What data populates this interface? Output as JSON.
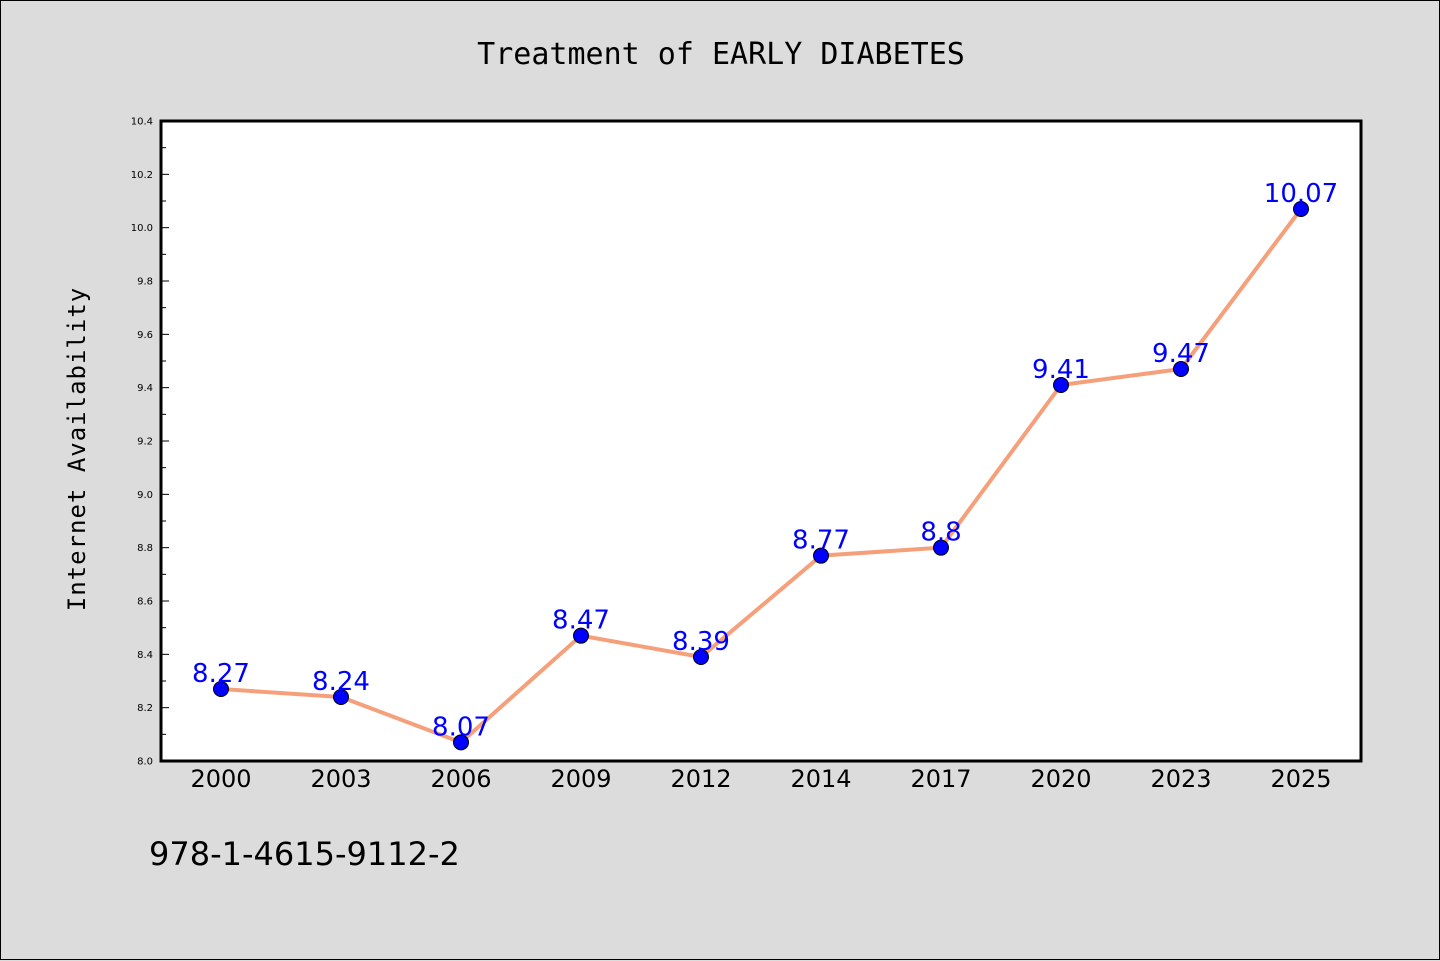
{
  "chart_data": {
    "type": "line",
    "title": "Treatment of EARLY DIABETES",
    "xlabel": "",
    "ylabel": "Internet Availability",
    "categories": [
      "2000",
      "2003",
      "2006",
      "2009",
      "2012",
      "2014",
      "2017",
      "2020",
      "2023",
      "2025"
    ],
    "series": [
      {
        "values": [
          8.27,
          8.24,
          8.07,
          8.47,
          8.39,
          8.77,
          8.8,
          9.41,
          9.47,
          10.07
        ],
        "data_labels": [
          "8.27",
          "8.24",
          "8.07",
          "8.47",
          "8.39",
          "8.77",
          "8.8",
          "9.41",
          "9.47",
          "10.07"
        ],
        "line_color": "#f5a07a",
        "marker_color": "#0000ff"
      }
    ],
    "ylim": [
      8.0,
      10.4
    ],
    "yticks": [
      "8.0",
      "8.2",
      "8.4",
      "8.6",
      "8.8",
      "9.0",
      "9.2",
      "9.4",
      "9.6",
      "9.8",
      "10.0",
      "10.2",
      "10.4"
    ],
    "grid": false,
    "legend": "none"
  },
  "footnote": "978-1-4615-9112-2",
  "colors": {
    "background": "#dcdcdc",
    "plot_background": "#ffffff",
    "label_color": "#0000ff"
  }
}
